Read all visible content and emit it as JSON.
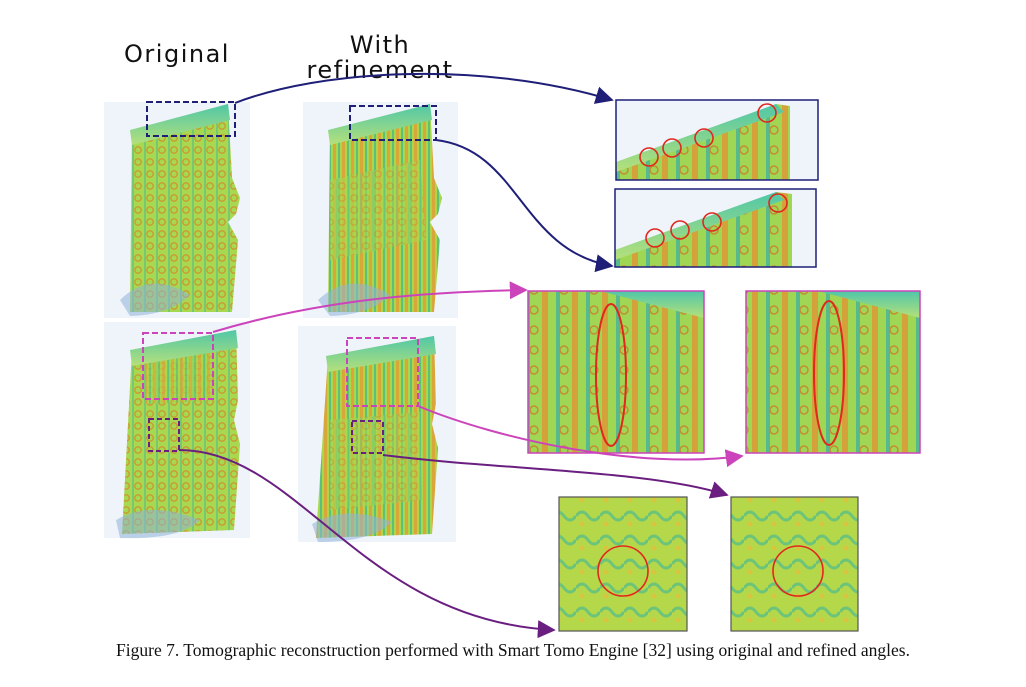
{
  "labels": {
    "original": "Original",
    "refined_line1": "With",
    "refined_line2": "refinement"
  },
  "caption": "Figure 7. Tomographic reconstruction performed with Smart Tomo Engine [32] using original and refined angles.",
  "colors": {
    "navy": "#1f1f78",
    "magenta": "#cc44bb",
    "purple": "#6a1f80",
    "highlight_red": "#e0281e",
    "volume_green": "#8fd14a",
    "volume_yellow": "#d8c63a",
    "volume_teal": "#33b7a0"
  }
}
